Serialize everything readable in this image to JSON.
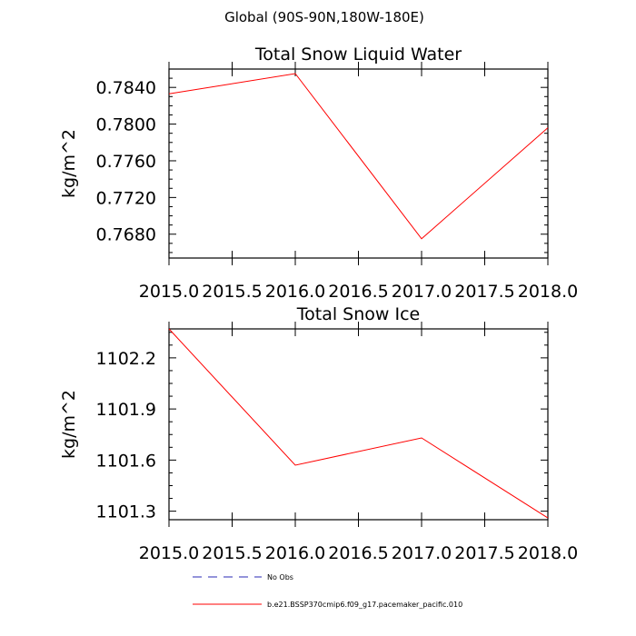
{
  "suptitle": "Global (90S-90N,180W-180E)",
  "colors": {
    "model_line": "#ff0000",
    "obs_line": "#2a2ab4",
    "axis": "#000000"
  },
  "legend": [
    {
      "label": "No Obs",
      "color": "#2a2ab4",
      "dash": "dashed"
    },
    {
      "label": "b.e21.BSSP370cmip6.f09_g17.pacemaker_pacific.010",
      "color": "#ff0000",
      "dash": "solid"
    }
  ],
  "chart_data": [
    {
      "type": "line",
      "title": "Total Snow Liquid Water",
      "ylabel": "kg/m^2",
      "xlabel": "",
      "xlim": [
        2015.0,
        2018.0
      ],
      "ylim": [
        0.7654,
        0.786
      ],
      "xticks": [
        "2015.0",
        "2015.5",
        "2016.0",
        "2016.5",
        "2017.0",
        "2017.5",
        "2018.0"
      ],
      "yticks": [
        "0.7680",
        "0.7720",
        "0.7760",
        "0.7800",
        "0.7840"
      ],
      "series": [
        {
          "name": "b.e21.BSSP370cmip6.f09_g17.pacemaker_pacific.010",
          "x": [
            2015,
            2016,
            2017,
            2018
          ],
          "y": [
            0.7833,
            0.7855,
            0.7675,
            0.7796
          ]
        }
      ]
    },
    {
      "type": "line",
      "title": "Total Snow Ice",
      "ylabel": "kg/m^2",
      "xlabel": "",
      "xlim": [
        2015.0,
        2018.0
      ],
      "ylim": [
        1101.25,
        1102.37
      ],
      "xticks": [
        "2015.0",
        "2015.5",
        "2016.0",
        "2016.5",
        "2017.0",
        "2017.5",
        "2018.0"
      ],
      "yticks": [
        "1101.3",
        "1101.6",
        "1101.9",
        "1102.2"
      ],
      "series": [
        {
          "name": "b.e21.BSSP370cmip6.f09_g17.pacemaker_pacific.010",
          "x": [
            2015,
            2016,
            2017,
            2018
          ],
          "y": [
            1102.37,
            1101.57,
            1101.73,
            1101.26
          ]
        }
      ]
    }
  ]
}
